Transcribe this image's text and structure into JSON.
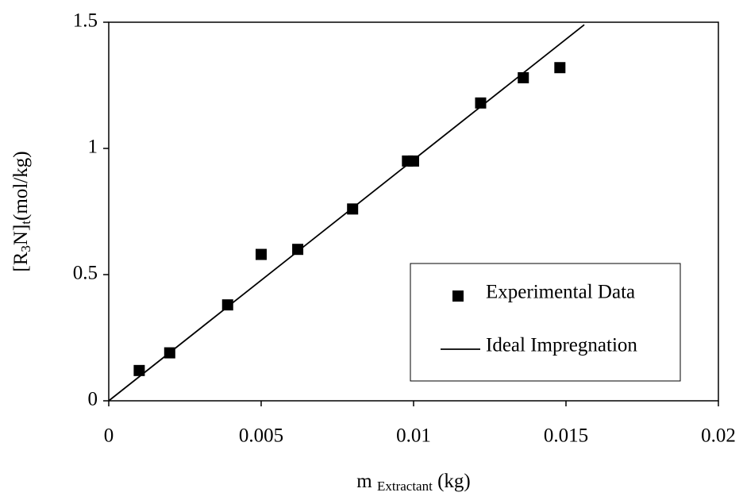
{
  "chart_data": {
    "type": "scatter",
    "xlabel": [
      "m ",
      "Extractant",
      " (kg)"
    ],
    "ylabel": [
      "[R",
      "3",
      "N]",
      "t",
      "(mol/kg)"
    ],
    "xlim": [
      0,
      0.02
    ],
    "ylim": [
      0,
      1.5
    ],
    "xticks": [
      0,
      0.005,
      0.01,
      0.015,
      0.02
    ],
    "yticks": [
      0,
      0.5,
      1,
      1.5
    ],
    "grid": false,
    "legend": "lower right",
    "series": [
      {
        "name": "Experimental Data",
        "color": "#000000",
        "mode": "markers",
        "x": [
          0.001,
          0.002,
          0.0039,
          0.005,
          0.0062,
          0.008,
          0.0098,
          0.01,
          0.0122,
          0.0136,
          0.0148
        ],
        "values": [
          0.12,
          0.19,
          0.38,
          0.58,
          0.6,
          0.76,
          0.95,
          0.95,
          1.18,
          1.28,
          1.32
        ]
      },
      {
        "name": "Ideal Impregnation",
        "color": "#000000",
        "mode": "line",
        "x": [
          0,
          0.0156
        ],
        "values": [
          0,
          1.49
        ]
      }
    ]
  }
}
